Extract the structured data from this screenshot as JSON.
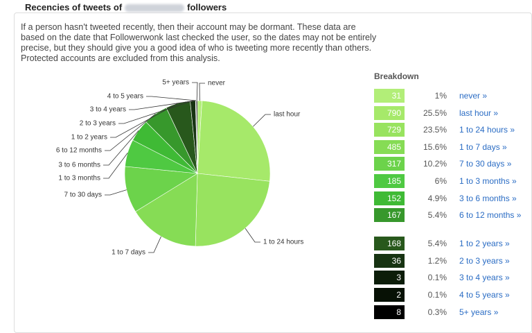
{
  "header": {
    "title_start": "Recencies of tweets of",
    "title_end": "followers"
  },
  "description": "If a person hasn't tweeted recently, then their account may be dormant. These data are based on the date that Followerwonk last checked the user, so the dates may not be entirely precise, but they should give you a good idea of who is tweeting more recently than others. Protected accounts are excluded from this analysis.",
  "breakdown": {
    "title": "Breakdown",
    "rows": [
      {
        "count": 31,
        "percent": "1%",
        "link": "never »",
        "pie_label": "never",
        "color": "#b2ee78"
      },
      {
        "count": 790,
        "percent": "25.5%",
        "link": "last hour »",
        "pie_label": "last hour",
        "color": "#a6e96a"
      },
      {
        "count": 729,
        "percent": "23.5%",
        "link": "1 to 24 hours »",
        "pie_label": "1 to 24 hours",
        "color": "#98e35f"
      },
      {
        "count": 485,
        "percent": "15.6%",
        "link": "1 to 7 days »",
        "pie_label": "1 to 7 days",
        "color": "#86dc55"
      },
      {
        "count": 317,
        "percent": "10.2%",
        "link": "7 to 30 days »",
        "pie_label": "7 to 30 days",
        "color": "#6cd34b"
      },
      {
        "count": 185,
        "percent": "6%",
        "link": "1 to 3 months »",
        "pie_label": "1 to 3 months",
        "color": "#4fc942"
      },
      {
        "count": 152,
        "percent": "4.9%",
        "link": "3 to 6 months »",
        "pie_label": "3 to 6 months",
        "color": "#3fba35"
      },
      {
        "count": 167,
        "percent": "5.4%",
        "link": "6 to 12 months »",
        "pie_label": "6 to 12 months",
        "color": "#37982c"
      },
      {
        "count": 168,
        "percent": "5.4%",
        "link": "1 to 2 years »",
        "pie_label": "1 to 2 years",
        "color": "#28581c"
      },
      {
        "count": 36,
        "percent": "1.2%",
        "link": "2 to 3 years »",
        "pie_label": "2 to 3 years",
        "color": "#173312"
      },
      {
        "count": 3,
        "percent": "0.1%",
        "link": "3 to 4 years »",
        "pie_label": "3 to 4 years",
        "color": "#0c1d09"
      },
      {
        "count": 2,
        "percent": "0.1%",
        "link": "4 to 5 years »",
        "pie_label": "4 to 5 years",
        "color": "#071105"
      },
      {
        "count": 8,
        "percent": "0.3%",
        "link": "5+ years »",
        "pie_label": "5+ years",
        "color": "#000000"
      }
    ]
  }
}
